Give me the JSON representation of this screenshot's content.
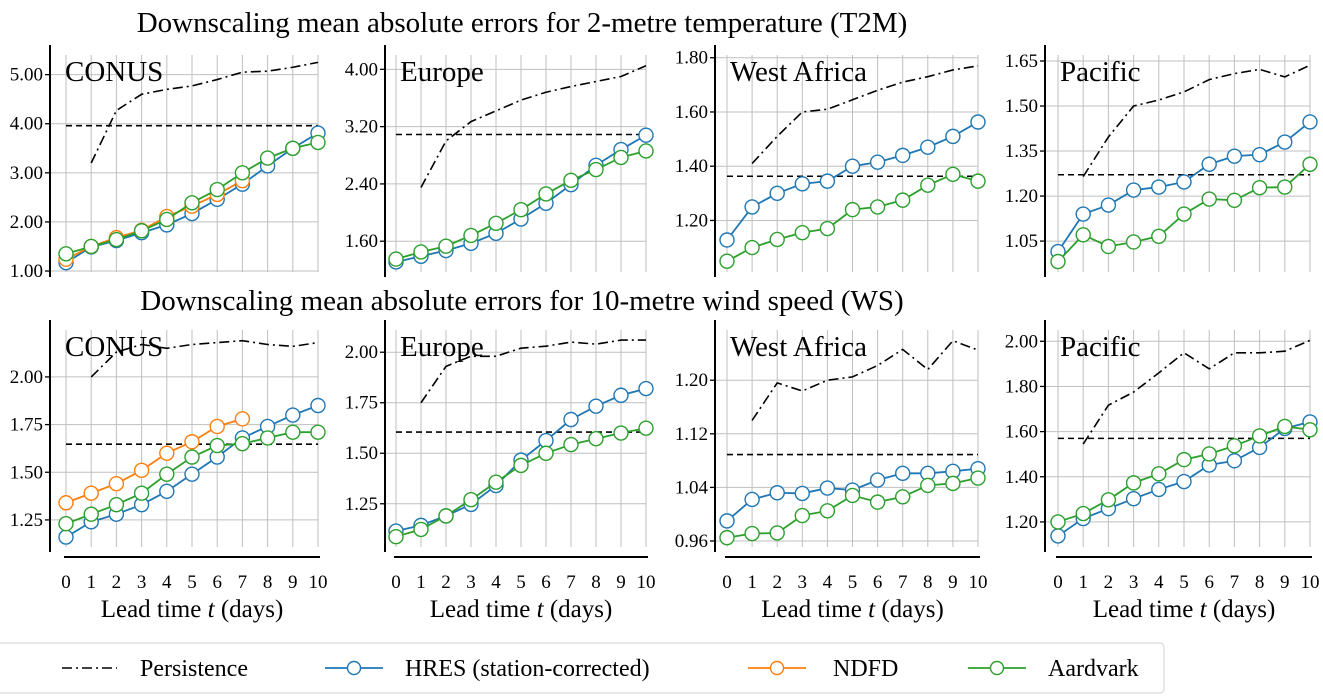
{
  "colors": {
    "hres": "#1f77b4",
    "ndfd": "#ff7f0e",
    "aardvark": "#2ca02c",
    "persistence": "#000000",
    "climatology": "#000000",
    "grid": "#bfbfbf"
  },
  "legend": {
    "entries": [
      {
        "key": "persistence",
        "label": "Persistence",
        "style": "dashdot"
      },
      {
        "key": "hres",
        "label": "HRES (station-corrected)",
        "style": "marker"
      },
      {
        "key": "ndfd",
        "label": "NDFD",
        "style": "marker"
      },
      {
        "key": "aardvark",
        "label": "Aardvark",
        "style": "marker"
      }
    ]
  },
  "chart_data": [
    {
      "type": "line",
      "title": "Downscaling mean absolute errors for 2-metre temperature (T2M)",
      "xlabel": {
        "pre": "Lead time ",
        "var": "t",
        "post": " (days)"
      },
      "x": [
        0,
        1,
        2,
        3,
        4,
        5,
        6,
        7,
        8,
        9,
        10
      ],
      "xtick_labels": [
        "0",
        "1",
        "2",
        "3",
        "4",
        "5",
        "6",
        "7",
        "8",
        "9",
        "10"
      ],
      "show_xticks": false,
      "panels": [
        {
          "region": "CONUS",
          "ylim": [
            0.98,
            5.4
          ],
          "yticks": [
            1,
            2,
            3,
            4,
            5
          ],
          "ytick_labels": [
            "1.00",
            "2.00",
            "3.00",
            "4.00",
            "5.00"
          ],
          "climatology": 3.96,
          "series": {
            "persistence": [
              null,
              3.2,
              4.27,
              4.6,
              4.7,
              4.77,
              4.9,
              5.05,
              5.07,
              5.15,
              5.25
            ],
            "hres": [
              1.17,
              1.49,
              1.62,
              1.78,
              1.94,
              2.17,
              2.46,
              2.77,
              3.14,
              3.5,
              3.81
            ],
            "ndfd": [
              1.24,
              1.5,
              1.68,
              1.83,
              2.11,
              2.32,
              2.56,
              2.84
            ],
            "aardvark": [
              1.35,
              1.5,
              1.64,
              1.82,
              2.05,
              2.39,
              2.66,
              3.0,
              3.3,
              3.5,
              3.62
            ]
          }
        },
        {
          "region": "Europe",
          "ylim": [
            1.17,
            4.2
          ],
          "yticks": [
            1.6,
            2.4,
            3.2,
            4.0
          ],
          "ytick_labels": [
            "1.60",
            "2.40",
            "3.20",
            "4.00"
          ],
          "climatology": 3.09,
          "series": {
            "persistence": [
              null,
              2.35,
              3.0,
              3.27,
              3.42,
              3.57,
              3.68,
              3.76,
              3.83,
              3.9,
              4.05
            ],
            "hres": [
              1.31,
              1.39,
              1.47,
              1.57,
              1.71,
              1.91,
              2.13,
              2.39,
              2.66,
              2.88,
              3.08
            ],
            "aardvark": [
              1.35,
              1.45,
              1.53,
              1.68,
              1.85,
              2.04,
              2.26,
              2.45,
              2.6,
              2.77,
              2.86
            ]
          }
        },
        {
          "region": "West Africa",
          "ylim": [
            1.01,
            1.81
          ],
          "yticks": [
            1.2,
            1.4,
            1.6,
            1.8
          ],
          "ytick_labels": [
            "1.20",
            "1.40",
            "1.60",
            "1.80"
          ],
          "climatology": 1.363,
          "series": {
            "persistence": [
              null,
              1.41,
              1.51,
              1.6,
              1.61,
              1.645,
              1.68,
              1.71,
              1.73,
              1.755,
              1.77
            ],
            "hres": [
              1.128,
              1.25,
              1.3,
              1.335,
              1.345,
              1.4,
              1.415,
              1.44,
              1.47,
              1.51,
              1.563
            ],
            "aardvark": [
              1.05,
              1.1,
              1.13,
              1.155,
              1.17,
              1.24,
              1.25,
              1.275,
              1.33,
              1.37,
              1.345
            ]
          }
        },
        {
          "region": "Pacific",
          "ylim": [
            0.947,
            1.67
          ],
          "yticks": [
            1.05,
            1.2,
            1.35,
            1.5,
            1.65
          ],
          "ytick_labels": [
            "1.05",
            "1.20",
            "1.35",
            "1.50",
            "1.65"
          ],
          "climatology": 1.271,
          "series": {
            "persistence": [
              null,
              1.265,
              1.397,
              1.5,
              1.52,
              1.547,
              1.588,
              1.608,
              1.622,
              1.597,
              1.636
            ],
            "hres": [
              1.015,
              1.14,
              1.17,
              1.22,
              1.23,
              1.247,
              1.306,
              1.333,
              1.338,
              1.38,
              1.447
            ],
            "aardvark": [
              0.982,
              1.071,
              1.032,
              1.047,
              1.066,
              1.14,
              1.19,
              1.186,
              1.228,
              1.23,
              1.306
            ]
          }
        }
      ]
    },
    {
      "type": "line",
      "title": "Downscaling mean absolute errors for 10-metre wind speed (WS)",
      "xlabel": {
        "pre": "Lead time ",
        "var": "t",
        "post": " (days)"
      },
      "x": [
        0,
        1,
        2,
        3,
        4,
        5,
        6,
        7,
        8,
        9,
        10
      ],
      "xtick_labels": [
        "0",
        "1",
        "2",
        "3",
        "4",
        "5",
        "6",
        "7",
        "8",
        "9",
        "10"
      ],
      "show_xticks": true,
      "panels": [
        {
          "region": "CONUS",
          "ylim": [
            1.108,
            2.246
          ],
          "yticks": [
            1.25,
            1.5,
            1.75,
            2.0
          ],
          "ytick_labels": [
            "1.25",
            "1.50",
            "1.75",
            "2.00"
          ],
          "climatology": 1.647,
          "series": {
            "persistence": [
              null,
              2.0,
              2.13,
              2.17,
              2.15,
              2.17,
              2.18,
              2.19,
              2.17,
              2.16,
              2.18
            ],
            "hres": [
              1.16,
              1.24,
              1.28,
              1.33,
              1.4,
              1.49,
              1.58,
              1.68,
              1.74,
              1.8,
              1.85
            ],
            "ndfd": [
              1.34,
              1.39,
              1.44,
              1.51,
              1.6,
              1.66,
              1.74,
              1.78
            ],
            "aardvark": [
              1.23,
              1.28,
              1.33,
              1.39,
              1.49,
              1.58,
              1.64,
              1.65,
              1.68,
              1.71,
              1.71
            ]
          }
        },
        {
          "region": "Europe",
          "ylim": [
            1.036,
            2.11
          ],
          "yticks": [
            1.25,
            1.5,
            1.75,
            2.0
          ],
          "ytick_labels": [
            "1.25",
            "1.50",
            "1.75",
            "2.00"
          ],
          "climatology": 1.605,
          "series": {
            "persistence": [
              null,
              1.75,
              1.93,
              1.98,
              1.98,
              2.02,
              2.03,
              2.05,
              2.04,
              2.06,
              2.06
            ],
            "hres": [
              1.115,
              1.143,
              1.19,
              1.247,
              1.34,
              1.466,
              1.563,
              1.667,
              1.733,
              1.787,
              1.82
            ],
            "aardvark": [
              1.087,
              1.123,
              1.19,
              1.27,
              1.357,
              1.44,
              1.5,
              1.543,
              1.572,
              1.6,
              1.624
            ]
          }
        },
        {
          "region": "West Africa",
          "ylim": [
            0.951,
            1.275
          ],
          "yticks": [
            0.96,
            1.04,
            1.12,
            1.2
          ],
          "ytick_labels": [
            "0.96",
            "1.04",
            "1.12",
            "1.20"
          ],
          "climatology": 1.089,
          "series": {
            "persistence": [
              null,
              1.14,
              1.196,
              1.184,
              1.2,
              1.205,
              1.222,
              1.246,
              1.216,
              1.259,
              1.245
            ],
            "hres": [
              0.99,
              1.022,
              1.032,
              1.031,
              1.039,
              1.036,
              1.051,
              1.061,
              1.061,
              1.064,
              1.068
            ],
            "aardvark": [
              0.965,
              0.971,
              0.972,
              0.998,
              1.005,
              1.028,
              1.018,
              1.026,
              1.043,
              1.046,
              1.054
            ]
          }
        },
        {
          "region": "Pacific",
          "ylim": [
            1.089,
            2.05
          ],
          "yticks": [
            1.2,
            1.4,
            1.6,
            1.8,
            2.0
          ],
          "ytick_labels": [
            "1.20",
            "1.40",
            "1.60",
            "1.80",
            "2.00"
          ],
          "climatology": 1.57,
          "series": {
            "persistence": [
              null,
              1.545,
              1.717,
              1.775,
              1.86,
              1.949,
              1.878,
              1.949,
              1.949,
              1.956,
              2.004
            ],
            "hres": [
              1.138,
              1.215,
              1.259,
              1.303,
              1.344,
              1.379,
              1.452,
              1.471,
              1.53,
              1.614,
              1.643
            ],
            "aardvark": [
              1.2,
              1.237,
              1.298,
              1.373,
              1.413,
              1.476,
              1.501,
              1.537,
              1.581,
              1.623,
              1.608
            ]
          }
        }
      ]
    }
  ]
}
